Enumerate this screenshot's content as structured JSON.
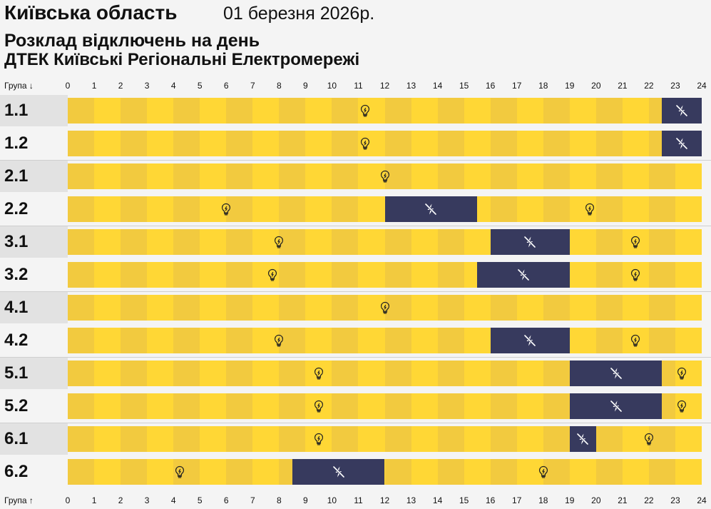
{
  "header": {
    "region": "Київська область",
    "date": "01 березня 2026р.",
    "subtitle": "Розклад відключень на день",
    "company": "ДТЕК Київські Регіональні Електромережі"
  },
  "axis": {
    "top_label": "Група ↓",
    "bottom_label": "Група ↑",
    "hours": [
      "0",
      "1",
      "2",
      "3",
      "4",
      "5",
      "6",
      "7",
      "8",
      "9",
      "10",
      "11",
      "12",
      "13",
      "14",
      "15",
      "16",
      "17",
      "18",
      "19",
      "20",
      "21",
      "22",
      "23",
      "24"
    ]
  },
  "colors": {
    "power_on": "#ffd735",
    "power_on_alt": "#f2ca3f",
    "power_off": "#373a5e"
  },
  "icons": {
    "power_on": "lightbulb-icon",
    "power_off": "power-off-icon"
  },
  "groups": [
    {
      "name": "1.1",
      "outages": [
        [
          22.5,
          24
        ]
      ]
    },
    {
      "name": "1.2",
      "outages": [
        [
          22.5,
          24
        ]
      ]
    },
    {
      "name": "2.1",
      "outages": []
    },
    {
      "name": "2.2",
      "outages": [
        [
          12,
          15.5
        ]
      ]
    },
    {
      "name": "3.1",
      "outages": [
        [
          16,
          19
        ]
      ]
    },
    {
      "name": "3.2",
      "outages": [
        [
          15.5,
          19
        ]
      ]
    },
    {
      "name": "4.1",
      "outages": []
    },
    {
      "name": "4.2",
      "outages": [
        [
          16,
          19
        ]
      ]
    },
    {
      "name": "5.1",
      "outages": [
        [
          19,
          22.5
        ]
      ]
    },
    {
      "name": "5.2",
      "outages": [
        [
          19,
          22.5
        ]
      ]
    },
    {
      "name": "6.1",
      "outages": [
        [
          19,
          20
        ]
      ]
    },
    {
      "name": "6.2",
      "outages": [
        [
          8.5,
          12
        ]
      ]
    }
  ]
}
